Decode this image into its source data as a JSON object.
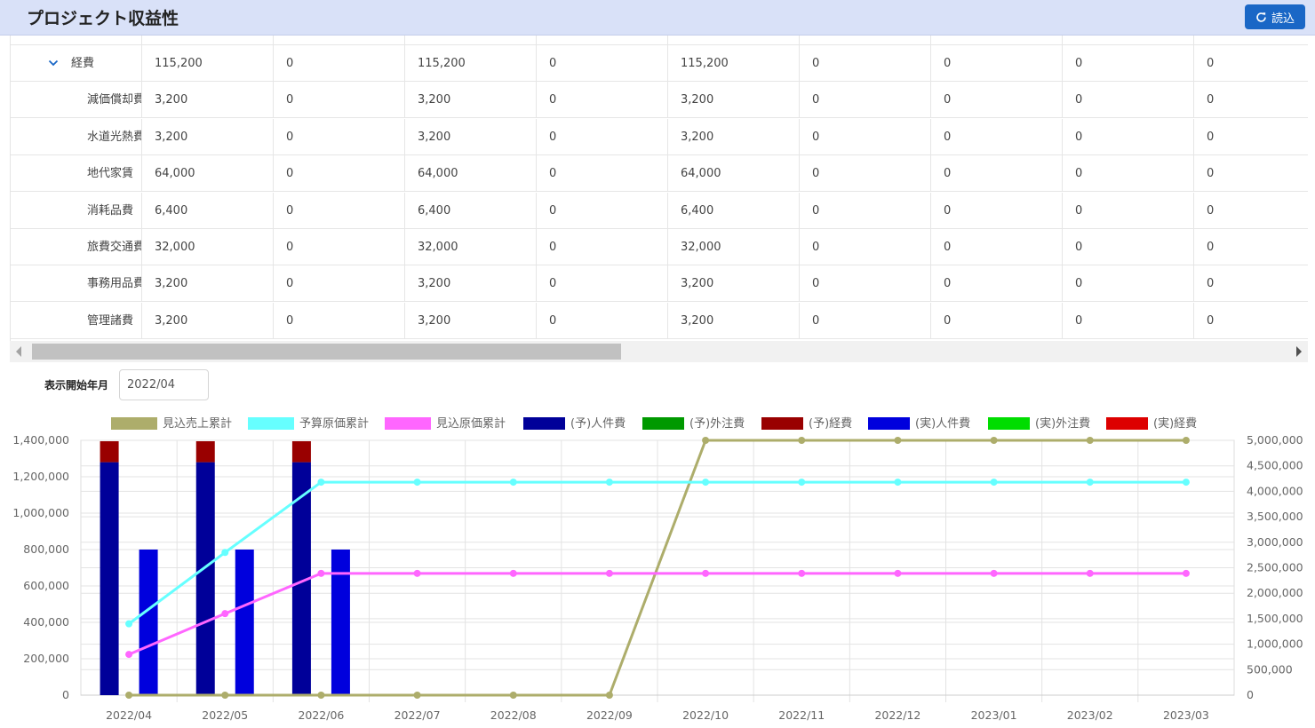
{
  "header": {
    "title": "プロジェクト収益性",
    "reload_label": "読込"
  },
  "grid": {
    "rows": [
      {
        "label": "経費",
        "expanded": true,
        "values": [
          "115,200",
          "0",
          "115,200",
          "0",
          "115,200",
          "0",
          "0",
          "0",
          "0"
        ]
      },
      {
        "label": "減価償却費",
        "values": [
          "3,200",
          "0",
          "3,200",
          "0",
          "3,200",
          "0",
          "0",
          "0",
          "0"
        ]
      },
      {
        "label": "水道光熱費",
        "values": [
          "3,200",
          "0",
          "3,200",
          "0",
          "3,200",
          "0",
          "0",
          "0",
          "0"
        ]
      },
      {
        "label": "地代家賃",
        "values": [
          "64,000",
          "0",
          "64,000",
          "0",
          "64,000",
          "0",
          "0",
          "0",
          "0"
        ]
      },
      {
        "label": "消耗品費",
        "values": [
          "6,400",
          "0",
          "6,400",
          "0",
          "6,400",
          "0",
          "0",
          "0",
          "0"
        ]
      },
      {
        "label": "旅費交通費",
        "values": [
          "32,000",
          "0",
          "32,000",
          "0",
          "32,000",
          "0",
          "0",
          "0",
          "0"
        ]
      },
      {
        "label": "事務用品費",
        "values": [
          "3,200",
          "0",
          "3,200",
          "0",
          "3,200",
          "0",
          "0",
          "0",
          "0"
        ]
      },
      {
        "label": "管理諸費",
        "values": [
          "3,200",
          "0",
          "3,200",
          "0",
          "3,200",
          "0",
          "0",
          "0",
          "0"
        ]
      }
    ]
  },
  "start_month": {
    "label": "表示開始年月",
    "value": "2022/04"
  },
  "icons": {
    "reload": "refresh-icon",
    "expander": "chevron-down-icon"
  },
  "chart_data": {
    "type": "bar",
    "categories": [
      "2022/04",
      "2022/05",
      "2022/06",
      "2022/07",
      "2022/08",
      "2022/09",
      "2022/10",
      "2022/11",
      "2022/12",
      "2023/01",
      "2023/02",
      "2023/03"
    ],
    "y_left": {
      "ylim": [
        0,
        1400000
      ],
      "ticks": [
        "0",
        "200,000",
        "400,000",
        "600,000",
        "800,000",
        "1,000,000",
        "1,200,000",
        "1,400,000"
      ]
    },
    "y_right": {
      "ylim": [
        0,
        5000000
      ],
      "ticks": [
        "0",
        "500,000",
        "1,000,000",
        "1,500,000",
        "2,000,000",
        "2,500,000",
        "3,000,000",
        "3,500,000",
        "4,000,000",
        "4,500,000",
        "5,000,000"
      ]
    },
    "grid": true,
    "legend_position": "top",
    "series": [
      {
        "name": "見込売上累計",
        "type": "line",
        "axis": "right",
        "color": "#adad6b",
        "values": [
          0,
          0,
          0,
          0,
          0,
          0,
          5000000,
          5000000,
          5000000,
          5000000,
          5000000,
          5000000
        ]
      },
      {
        "name": "予算原価累計",
        "type": "line",
        "axis": "right",
        "color": "#66ffff",
        "values": [
          1400000,
          2800000,
          4180000,
          4180000,
          4180000,
          4180000,
          4180000,
          4180000,
          4180000,
          4180000,
          4180000,
          4180000
        ]
      },
      {
        "name": "見込原価累計",
        "type": "line",
        "axis": "right",
        "color": "#ff66ff",
        "values": [
          800000,
          1600000,
          2390000,
          2390000,
          2390000,
          2390000,
          2390000,
          2390000,
          2390000,
          2390000,
          2390000,
          2390000
        ]
      },
      {
        "name": "(予)人件費",
        "type": "bar",
        "stack": "plan",
        "axis": "left",
        "color": "#000099",
        "values": [
          1280000,
          1280000,
          1280000,
          0,
          0,
          0,
          0,
          0,
          0,
          0,
          0,
          0
        ]
      },
      {
        "name": "(予)外注費",
        "type": "bar",
        "stack": "plan",
        "axis": "left",
        "color": "#009900",
        "values": [
          0,
          0,
          0,
          0,
          0,
          0,
          0,
          0,
          0,
          0,
          0,
          0
        ]
      },
      {
        "name": "(予)経費",
        "type": "bar",
        "stack": "plan",
        "axis": "left",
        "color": "#990000",
        "values": [
          115200,
          115200,
          115200,
          0,
          0,
          0,
          0,
          0,
          0,
          0,
          0,
          0
        ]
      },
      {
        "name": "(実)人件費",
        "type": "bar",
        "stack": "actual",
        "axis": "left",
        "color": "#0000dd",
        "values": [
          800000,
          800000,
          800000,
          0,
          0,
          0,
          0,
          0,
          0,
          0,
          0,
          0
        ]
      },
      {
        "name": "(実)外注費",
        "type": "bar",
        "stack": "actual",
        "axis": "left",
        "color": "#00dd00",
        "values": [
          0,
          0,
          0,
          0,
          0,
          0,
          0,
          0,
          0,
          0,
          0,
          0
        ]
      },
      {
        "name": "(実)経費",
        "type": "bar",
        "stack": "actual",
        "axis": "left",
        "color": "#dd0000",
        "values": [
          0,
          0,
          0,
          0,
          0,
          0,
          0,
          0,
          0,
          0,
          0,
          0
        ]
      }
    ]
  }
}
